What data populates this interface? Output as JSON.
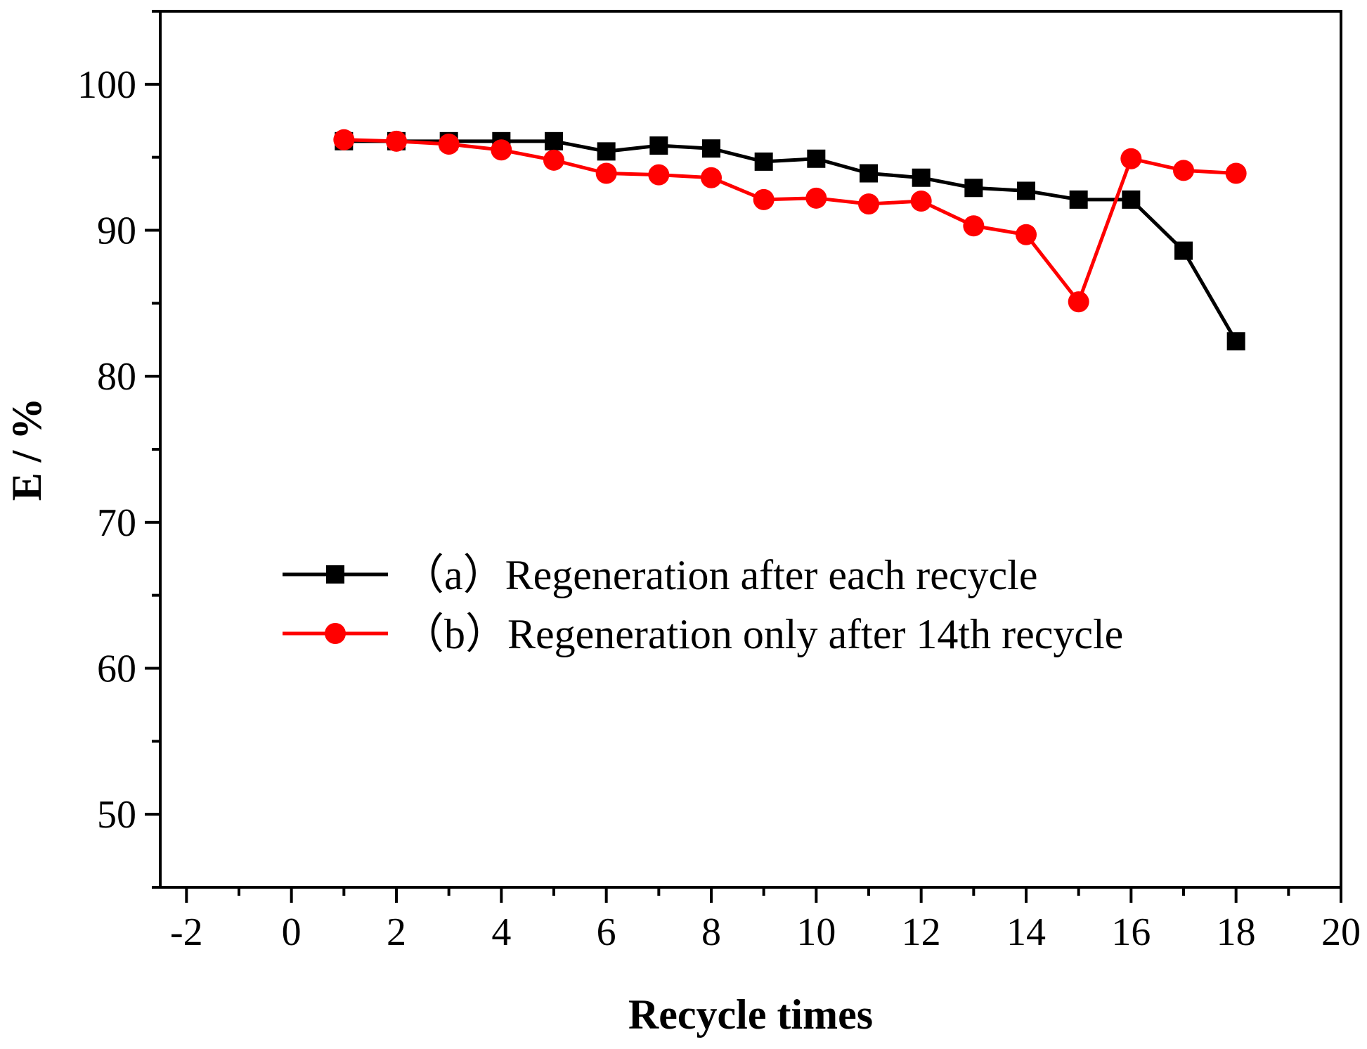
{
  "chart_data": {
    "type": "line",
    "title": "",
    "xlabel": "Recycle times",
    "ylabel": "E / %",
    "xlim": [
      -2.5,
      20
    ],
    "ylim": [
      45,
      105
    ],
    "x_ticks": [
      -2,
      0,
      2,
      4,
      6,
      8,
      10,
      12,
      14,
      16,
      18,
      20
    ],
    "x_tick_labels": [
      "-2",
      "0",
      "2",
      "4",
      "6",
      "8",
      "10",
      "12",
      "14",
      "16",
      "18",
      "20"
    ],
    "y_ticks": [
      50,
      60,
      70,
      80,
      90,
      100
    ],
    "y_tick_labels": [
      "50",
      "60",
      "70",
      "80",
      "90",
      "100"
    ],
    "legend_position": "center-left",
    "grid": false,
    "series": [
      {
        "name": "（a）Regeneration after each recycle",
        "color": "#000000",
        "marker": "square",
        "x": [
          1,
          2,
          3,
          4,
          5,
          6,
          7,
          8,
          9,
          10,
          11,
          12,
          13,
          14,
          15,
          16,
          17,
          18
        ],
        "values": [
          96.1,
          96.1,
          96.1,
          96.1,
          96.1,
          95.4,
          95.8,
          95.6,
          94.7,
          94.9,
          93.9,
          93.6,
          92.9,
          92.7,
          92.1,
          92.1,
          88.6,
          82.4
        ]
      },
      {
        "name": "（b）Regeneration only after 14th recycle",
        "color": "#ff0000",
        "marker": "circle",
        "x": [
          1,
          2,
          3,
          4,
          5,
          6,
          7,
          8,
          9,
          10,
          11,
          12,
          13,
          14,
          15,
          16,
          17,
          18
        ],
        "values": [
          96.2,
          96.1,
          95.9,
          95.5,
          94.8,
          93.9,
          93.8,
          93.6,
          92.1,
          92.2,
          91.8,
          92.0,
          90.3,
          89.7,
          85.1,
          94.9,
          94.1,
          93.9
        ]
      }
    ]
  }
}
